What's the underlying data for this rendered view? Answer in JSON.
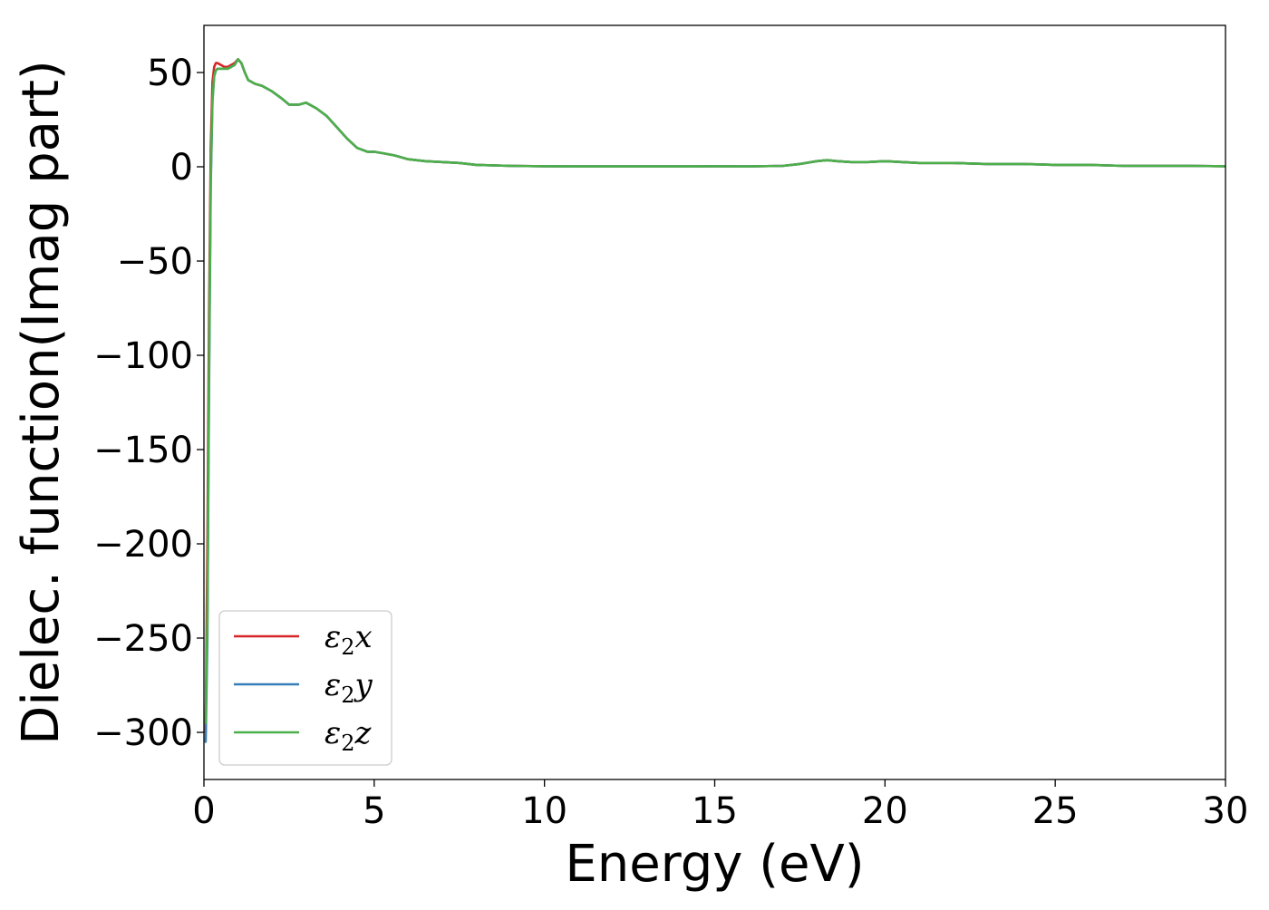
{
  "chart_data": {
    "type": "line",
    "title": "",
    "xlabel": "Energy (eV)",
    "ylabel": "Dielec. function(Imag part)",
    "xlim": [
      0,
      30
    ],
    "ylim": [
      -325,
      75
    ],
    "xticks": [
      0,
      5,
      10,
      15,
      20,
      25,
      30
    ],
    "xtick_labels": [
      "0",
      "5",
      "10",
      "15",
      "20",
      "25",
      "30"
    ],
    "yticks": [
      50,
      0,
      -50,
      -100,
      -150,
      -200,
      -250,
      -300
    ],
    "ytick_labels": [
      "50",
      "0",
      "−50",
      "−100",
      "−150",
      "−200",
      "−250",
      "−300"
    ],
    "grid": false,
    "legend_position": "lower-left",
    "series": [
      {
        "name": "ε₂x",
        "name_base": "ε",
        "name_sub": "2",
        "name_var": "x",
        "color": "#d62728",
        "x": [
          0.05,
          0.1,
          0.15,
          0.2,
          0.25,
          0.3,
          0.35,
          0.4,
          0.5,
          0.6,
          0.7,
          0.8,
          0.9,
          1.0,
          1.1,
          1.2,
          1.3,
          1.5,
          1.7,
          2.0,
          2.3,
          2.5,
          2.8,
          3.0,
          3.3,
          3.6,
          3.9,
          4.2,
          4.5,
          4.8,
          5.0,
          5.3,
          5.6,
          6.0,
          6.5,
          7.0,
          7.5,
          8.0,
          9.0,
          10.0,
          11.0,
          12.0,
          13.0,
          14.0,
          15.0,
          16.0,
          17.0,
          17.5,
          18.0,
          18.3,
          18.6,
          19.0,
          19.5,
          20.0,
          20.5,
          21.0,
          22.0,
          23.0,
          24.0,
          25.0,
          26.0,
          27.0,
          28.0,
          29.0,
          30.0
        ],
        "y": [
          -300,
          -200,
          -80,
          10,
          45,
          53,
          55,
          55,
          54,
          53,
          53,
          54,
          55,
          57,
          55,
          50,
          46,
          44,
          43,
          40,
          36,
          33,
          33,
          34,
          31,
          27,
          21,
          15,
          10,
          8,
          8,
          7,
          6,
          4,
          3,
          2.5,
          2,
          1,
          0.5,
          0.3,
          0.2,
          0.2,
          0.2,
          0.2,
          0.3,
          0.2,
          0.5,
          1.5,
          3,
          3.5,
          3,
          2.5,
          2.5,
          3,
          2.5,
          2,
          2,
          1.5,
          1.5,
          1,
          1,
          0.5,
          0.5,
          0.5,
          0.3
        ]
      },
      {
        "name": "ε₂y",
        "name_base": "ε",
        "name_sub": "2",
        "name_var": "y",
        "color": "#377eb8",
        "x": [
          0.05,
          0.1,
          0.15,
          0.2,
          0.25,
          0.3,
          0.35,
          0.4,
          0.5,
          0.6,
          0.7,
          0.8,
          0.9,
          1.0,
          1.1,
          1.2,
          1.3,
          1.5,
          1.7,
          2.0,
          2.3,
          2.5,
          2.8,
          3.0,
          3.3,
          3.6,
          3.9,
          4.2,
          4.5,
          4.8,
          5.0,
          5.3,
          5.6,
          6.0,
          6.5,
          7.0,
          7.5,
          8.0,
          9.0,
          10.0,
          11.0,
          12.0,
          13.0,
          14.0,
          15.0,
          16.0,
          17.0,
          17.5,
          18.0,
          18.3,
          18.6,
          19.0,
          19.5,
          20.0,
          20.5,
          21.0,
          22.0,
          23.0,
          24.0,
          25.0,
          26.0,
          27.0,
          28.0,
          29.0,
          30.0
        ],
        "y": [
          -305,
          -250,
          -120,
          -10,
          35,
          48,
          51,
          52,
          52,
          52,
          52,
          53,
          54,
          57,
          55,
          50,
          46,
          44,
          43,
          40,
          36,
          33,
          33,
          34,
          31,
          27,
          21,
          15,
          10,
          8,
          8,
          7,
          6,
          4,
          3,
          2.5,
          2,
          1,
          0.5,
          0.3,
          0.2,
          0.2,
          0.2,
          0.2,
          0.3,
          0.2,
          0.5,
          1.5,
          3,
          3.5,
          3,
          2.5,
          2.5,
          3,
          2.5,
          2,
          2,
          1.5,
          1.5,
          1,
          1,
          0.5,
          0.5,
          0.5,
          0.3
        ]
      },
      {
        "name": "ε₂z",
        "name_base": "ε",
        "name_sub": "2",
        "name_var": "z",
        "color": "#4daf4a",
        "x": [
          0.05,
          0.1,
          0.15,
          0.2,
          0.25,
          0.3,
          0.35,
          0.4,
          0.5,
          0.6,
          0.7,
          0.8,
          0.9,
          1.0,
          1.1,
          1.2,
          1.3,
          1.5,
          1.7,
          2.0,
          2.3,
          2.5,
          2.8,
          3.0,
          3.3,
          3.6,
          3.9,
          4.2,
          4.5,
          4.8,
          5.0,
          5.3,
          5.6,
          6.0,
          6.5,
          7.0,
          7.5,
          8.0,
          9.0,
          10.0,
          11.0,
          12.0,
          13.0,
          14.0,
          15.0,
          16.0,
          17.0,
          17.5,
          18.0,
          18.3,
          18.6,
          19.0,
          19.5,
          20.0,
          20.5,
          21.0,
          22.0,
          23.0,
          24.0,
          25.0,
          26.0,
          27.0,
          28.0,
          29.0,
          30.0
        ],
        "y": [
          -295,
          -240,
          -110,
          -5,
          35,
          48,
          51,
          52,
          52,
          52,
          52,
          53,
          54,
          57,
          55,
          50,
          46,
          44,
          43,
          40,
          36,
          33,
          33,
          34,
          31,
          27,
          21,
          15,
          10,
          8,
          8,
          7,
          6,
          4,
          3,
          2.5,
          2,
          1,
          0.5,
          0.3,
          0.2,
          0.2,
          0.2,
          0.2,
          0.3,
          0.2,
          0.5,
          1.5,
          3,
          3.5,
          3,
          2.5,
          2.5,
          3,
          2.5,
          2,
          2,
          1.5,
          1.5,
          1,
          1,
          0.5,
          0.5,
          0.5,
          0.3
        ]
      }
    ]
  }
}
